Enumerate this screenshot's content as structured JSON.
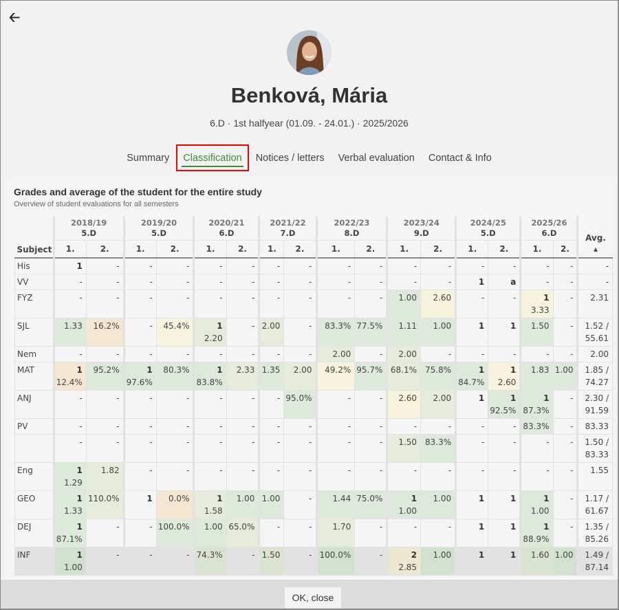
{
  "header": {
    "back_icon": "arrow-left-icon",
    "name": "Benková, Mária",
    "subtitle": "6.D · 1st halfyear (01.09. - 24.01.) · 2025/2026"
  },
  "tabs": [
    {
      "label": "Summary",
      "active": false
    },
    {
      "label": "Classification",
      "active": true
    },
    {
      "label": "Notices / letters",
      "active": false
    },
    {
      "label": "Verbal evaluation",
      "active": false
    },
    {
      "label": "Contact & Info",
      "active": false
    }
  ],
  "card": {
    "title": "Grades and average of the student for the entire study",
    "subtitle": "Overview of student evaluations for all semesters"
  },
  "colors": {
    "g": "#dde9da",
    "lg": "#e5ecdb",
    "y": "#f7f3dc",
    "o": "#f5e6d2",
    "accent": "#3b8c3b"
  },
  "table": {
    "subject_header": "Subject",
    "avg_header": "Avg.",
    "sort_icon": "sort-ascending-icon",
    "years": [
      {
        "year": "2018/19",
        "class": "5.D"
      },
      {
        "year": "2019/20",
        "class": "5.D"
      },
      {
        "year": "2020/21",
        "class": "6.D"
      },
      {
        "year": "2021/22",
        "class": "7.D"
      },
      {
        "year": "2022/23",
        "class": "8.D"
      },
      {
        "year": "2023/24",
        "class": "9.D"
      },
      {
        "year": "2024/25",
        "class": "5.D"
      },
      {
        "year": "2025/26",
        "class": "6.D"
      }
    ],
    "semesters": [
      "1.",
      "2."
    ],
    "rows": [
      {
        "subject": "His",
        "avg": "-",
        "cells": [
          [
            "1",
            "",
            ""
          ],
          [
            "",
            "-",
            ""
          ],
          [
            "",
            "-",
            ""
          ],
          [
            "",
            "-",
            ""
          ],
          [
            "",
            "-",
            ""
          ],
          [
            "",
            "-",
            ""
          ],
          [
            "",
            "-",
            ""
          ],
          [
            "",
            "-",
            ""
          ],
          [
            "",
            "-",
            ""
          ],
          [
            "",
            "-",
            ""
          ],
          [
            "",
            "-",
            ""
          ],
          [
            "",
            "-",
            ""
          ],
          [
            "",
            "-",
            ""
          ],
          [
            "",
            "-",
            ""
          ],
          [
            "",
            "-",
            ""
          ],
          [
            "",
            "-",
            ""
          ]
        ]
      },
      {
        "subject": "VV",
        "avg": "-",
        "cells": [
          [
            "",
            "-",
            ""
          ],
          [
            "",
            "-",
            ""
          ],
          [
            "",
            "-",
            ""
          ],
          [
            "",
            "-",
            ""
          ],
          [
            "",
            "-",
            ""
          ],
          [
            "",
            "-",
            ""
          ],
          [
            "",
            "-",
            ""
          ],
          [
            "",
            "-",
            ""
          ],
          [
            "",
            "-",
            ""
          ],
          [
            "",
            "-",
            ""
          ],
          [
            "",
            "-",
            ""
          ],
          [
            "",
            "-",
            ""
          ],
          [
            "1",
            "",
            ""
          ],
          [
            "a",
            "",
            ""
          ],
          [
            "",
            "-",
            ""
          ],
          [
            "",
            "-",
            ""
          ]
        ]
      },
      {
        "subject": "FYZ",
        "avg": "2.31",
        "tall": true,
        "cells": [
          [
            "",
            "-",
            ""
          ],
          [
            "",
            "-",
            ""
          ],
          [
            "",
            "-",
            ""
          ],
          [
            "",
            "-",
            ""
          ],
          [
            "",
            "-",
            ""
          ],
          [
            "",
            "-",
            ""
          ],
          [
            "",
            "-",
            ""
          ],
          [
            "",
            "-",
            ""
          ],
          [
            "",
            "-",
            ""
          ],
          [
            "",
            "-",
            ""
          ],
          [
            "",
            "1.00",
            "g"
          ],
          [
            "",
            "2.60",
            "y"
          ],
          [
            "",
            "-",
            ""
          ],
          [
            "",
            "-",
            ""
          ],
          [
            "1",
            "3.33",
            "y"
          ],
          [
            "",
            "-",
            ""
          ]
        ]
      },
      {
        "subject": "SJL",
        "avg": "1.52 / 55.61",
        "cells": [
          [
            "",
            "1.33",
            "g"
          ],
          [
            "",
            "16.2%",
            "o"
          ],
          [
            "",
            "-",
            ""
          ],
          [
            "",
            "45.4%",
            "y"
          ],
          [
            "1",
            "2.20",
            "lg"
          ],
          [
            "",
            "-",
            ""
          ],
          [
            "",
            "2.00",
            "lg"
          ],
          [
            "",
            "-",
            ""
          ],
          [
            "",
            "83.3%",
            "g"
          ],
          [
            "",
            "77.5%",
            "g"
          ],
          [
            "",
            "1.11",
            "g"
          ],
          [
            "",
            "1.00",
            "g"
          ],
          [
            "1",
            "",
            ""
          ],
          [
            "1",
            "",
            ""
          ],
          [
            "",
            "1.50",
            "g"
          ],
          [
            "",
            "-",
            ""
          ]
        ]
      },
      {
        "subject": "Nem",
        "avg": "2.00",
        "cells": [
          [
            "",
            "-",
            ""
          ],
          [
            "",
            "-",
            ""
          ],
          [
            "",
            "-",
            ""
          ],
          [
            "",
            "-",
            ""
          ],
          [
            "",
            "-",
            ""
          ],
          [
            "",
            "-",
            ""
          ],
          [
            "",
            "-",
            ""
          ],
          [
            "",
            "-",
            ""
          ],
          [
            "",
            "2.00",
            "lg"
          ],
          [
            "",
            "-",
            ""
          ],
          [
            "",
            "2.00",
            "lg"
          ],
          [
            "",
            "-",
            ""
          ],
          [
            "",
            "-",
            ""
          ],
          [
            "",
            "-",
            ""
          ],
          [
            "",
            "-",
            ""
          ],
          [
            "",
            "-",
            ""
          ]
        ]
      },
      {
        "subject": "MAT",
        "avg": "1.85 / 74.27",
        "cells": [
          [
            "1",
            "12.4%",
            "o"
          ],
          [
            "",
            "95.2%",
            "g"
          ],
          [
            "1",
            "97.6%",
            "g"
          ],
          [
            "",
            "80.3%",
            "g"
          ],
          [
            "1",
            "83.8%",
            "g"
          ],
          [
            "",
            "2.33",
            "lg"
          ],
          [
            "",
            "1.35",
            "g"
          ],
          [
            "",
            "2.00",
            "lg"
          ],
          [
            "",
            "49.2%",
            "y"
          ],
          [
            "",
            "95.7%",
            "g"
          ],
          [
            "",
            "68.1%",
            "lg"
          ],
          [
            "",
            "75.8%",
            "g"
          ],
          [
            "1",
            "84.7%",
            "g"
          ],
          [
            "1",
            "2.60",
            "y"
          ],
          [
            "",
            "1.83",
            "g"
          ],
          [
            "",
            "1.00",
            "g"
          ]
        ]
      },
      {
        "subject": "ANJ",
        "avg": "2.30 / 91.59",
        "cells": [
          [
            "",
            "-",
            ""
          ],
          [
            "",
            "-",
            ""
          ],
          [
            "",
            "-",
            ""
          ],
          [
            "",
            "-",
            ""
          ],
          [
            "",
            "-",
            ""
          ],
          [
            "",
            "-",
            ""
          ],
          [
            "",
            "-",
            ""
          ],
          [
            "",
            "95.0%",
            "g"
          ],
          [
            "",
            "-",
            ""
          ],
          [
            "",
            "-",
            ""
          ],
          [
            "",
            "2.60",
            "y"
          ],
          [
            "",
            "2.00",
            "lg"
          ],
          [
            "1",
            "",
            ""
          ],
          [
            "1",
            "92.5%",
            "g"
          ],
          [
            "1",
            "87.3%",
            "g"
          ],
          [
            "",
            "-",
            ""
          ]
        ]
      },
      {
        "subject": "PV",
        "avg": "83.33",
        "cells": [
          [
            "",
            "-",
            ""
          ],
          [
            "",
            "-",
            ""
          ],
          [
            "",
            "-",
            ""
          ],
          [
            "",
            "-",
            ""
          ],
          [
            "",
            "-",
            ""
          ],
          [
            "",
            "-",
            ""
          ],
          [
            "",
            "-",
            ""
          ],
          [
            "",
            "-",
            ""
          ],
          [
            "",
            "-",
            ""
          ],
          [
            "",
            "-",
            ""
          ],
          [
            "",
            "-",
            ""
          ],
          [
            "",
            "-",
            ""
          ],
          [
            "",
            "-",
            ""
          ],
          [
            "",
            "-",
            ""
          ],
          [
            "",
            "83.3%",
            "g"
          ],
          [
            "",
            "-",
            ""
          ]
        ]
      },
      {
        "subject": "",
        "avg": "1.50 / 83.33",
        "cells": [
          [
            "",
            "-",
            ""
          ],
          [
            "",
            "-",
            ""
          ],
          [
            "",
            "-",
            ""
          ],
          [
            "",
            "-",
            ""
          ],
          [
            "",
            "-",
            ""
          ],
          [
            "",
            "-",
            ""
          ],
          [
            "",
            "-",
            ""
          ],
          [
            "",
            "-",
            ""
          ],
          [
            "",
            "-",
            ""
          ],
          [
            "",
            "-",
            ""
          ],
          [
            "",
            "1.50",
            "lg"
          ],
          [
            "",
            "83.3%",
            "g"
          ],
          [
            "",
            "-",
            ""
          ],
          [
            "",
            "-",
            ""
          ],
          [
            "",
            "-",
            ""
          ],
          [
            "",
            "-",
            ""
          ]
        ]
      },
      {
        "subject": "Eng",
        "avg": "1.55",
        "cells": [
          [
            "1",
            "1.29",
            "g"
          ],
          [
            "",
            "1.82",
            "lg"
          ],
          [
            "",
            "-",
            ""
          ],
          [
            "",
            "-",
            ""
          ],
          [
            "",
            "-",
            ""
          ],
          [
            "",
            "-",
            ""
          ],
          [
            "",
            "-",
            ""
          ],
          [
            "",
            "-",
            ""
          ],
          [
            "",
            "-",
            ""
          ],
          [
            "",
            "-",
            ""
          ],
          [
            "",
            "-",
            ""
          ],
          [
            "",
            "-",
            ""
          ],
          [
            "",
            "-",
            ""
          ],
          [
            "",
            "-",
            ""
          ],
          [
            "",
            "-",
            ""
          ],
          [
            "",
            "-",
            ""
          ]
        ]
      },
      {
        "subject": "GEO",
        "avg": "1.17 / 61.67",
        "cells": [
          [
            "1",
            "1.33",
            "g"
          ],
          [
            "",
            "110.0%",
            "lg"
          ],
          [
            "1",
            "",
            ""
          ],
          [
            "",
            "0.0%",
            "o"
          ],
          [
            "1",
            "1.58",
            "lg"
          ],
          [
            "",
            "1.00",
            "g"
          ],
          [
            "",
            "1.00",
            "g"
          ],
          [
            "",
            "-",
            ""
          ],
          [
            "",
            "1.44",
            "g"
          ],
          [
            "",
            "75.0%",
            "g"
          ],
          [
            "1",
            "1.00",
            "g"
          ],
          [
            "",
            "1.00",
            "g"
          ],
          [
            "1",
            "",
            ""
          ],
          [
            "1",
            "",
            ""
          ],
          [
            "1",
            "1.00",
            "g"
          ],
          [
            "",
            "-",
            ""
          ]
        ]
      },
      {
        "subject": "DEJ",
        "avg": "1.35 / 85.26",
        "cells": [
          [
            "1",
            "87.1%",
            "g"
          ],
          [
            "",
            "-",
            ""
          ],
          [
            "",
            "-",
            ""
          ],
          [
            "",
            "100.0%",
            "g"
          ],
          [
            "",
            "1.00",
            "g"
          ],
          [
            "",
            "65.0%",
            "lg"
          ],
          [
            "",
            "-",
            ""
          ],
          [
            "",
            "-",
            ""
          ],
          [
            "",
            "1.70",
            "lg"
          ],
          [
            "",
            "-",
            ""
          ],
          [
            "",
            "-",
            ""
          ],
          [
            "",
            "-",
            ""
          ],
          [
            "1",
            "",
            ""
          ],
          [
            "1",
            "",
            ""
          ],
          [
            "1",
            "88.9%",
            "g"
          ],
          [
            "",
            "-",
            ""
          ]
        ]
      },
      {
        "subject": "INF",
        "avg": "1.49 / 87.14",
        "highlight": true,
        "cells": [
          [
            "1",
            "1.00",
            "g"
          ],
          [
            "",
            "-",
            ""
          ],
          [
            "",
            "-",
            ""
          ],
          [
            "",
            "-",
            ""
          ],
          [
            "",
            "74.3%",
            "lg"
          ],
          [
            "",
            "-",
            ""
          ],
          [
            "",
            "1.50",
            "lg"
          ],
          [
            "",
            "-",
            ""
          ],
          [
            "",
            "100.0%",
            "g"
          ],
          [
            "",
            "-",
            ""
          ],
          [
            "2",
            "2.85",
            "y"
          ],
          [
            "",
            "1.00",
            "g"
          ],
          [
            "1",
            "",
            ""
          ],
          [
            "1",
            "",
            ""
          ],
          [
            "",
            "1.60",
            "lg"
          ],
          [
            "",
            "1.00",
            "g"
          ]
        ]
      }
    ]
  },
  "footer": {
    "ok_label": "OK, close"
  }
}
